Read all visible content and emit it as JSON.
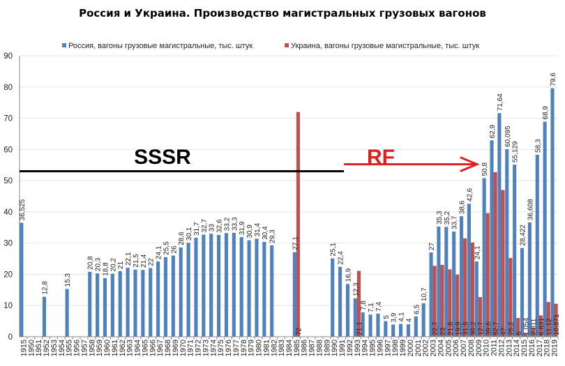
{
  "chart_data": {
    "type": "bar",
    "title": "Россия и Украина. Производство магистральных грузовых вагонов",
    "xlabel": "",
    "ylabel": "",
    "ylim": [
      0,
      90
    ],
    "yticks": [
      0,
      10,
      20,
      30,
      40,
      50,
      60,
      70,
      80,
      90
    ],
    "grid": true,
    "legend_position": "top",
    "categories": [
      "1915",
      "1950",
      "1951",
      "1952",
      "1953",
      "1954",
      "1955",
      "1956",
      "1957",
      "1958",
      "1959",
      "1960",
      "1961",
      "1962",
      "1963",
      "1964",
      "1965",
      "1966",
      "1967",
      "1968",
      "1969",
      "1970",
      "1971",
      "1972",
      "1973",
      "1974",
      "1975",
      "1976",
      "1977",
      "1978",
      "1979",
      "1980",
      "1981",
      "1982",
      "1983",
      "1984",
      "1985",
      "1986",
      "1987",
      "1988",
      "1989",
      "1990",
      "1991",
      "1992",
      "1993",
      "1994",
      "1995",
      "1996",
      "1997",
      "1998",
      "1999",
      "2000",
      "2001",
      "2002",
      "2003",
      "2004",
      "2005",
      "2006",
      "2007",
      "2008",
      "2009",
      "2010",
      "2011",
      "2012",
      "2013",
      "2014",
      "2015",
      "2016",
      "2017",
      "2018",
      "2019"
    ],
    "series": [
      {
        "name": "Россия, вагоны грузовые магистральные, тыс. штук",
        "color": "#4F81BD",
        "values": [
          36.525,
          null,
          null,
          12.8,
          null,
          null,
          15.3,
          null,
          null,
          20.8,
          20.3,
          18.8,
          20.2,
          21,
          22.1,
          21.5,
          21.4,
          22,
          24.1,
          25.5,
          26,
          28.6,
          30.1,
          31.7,
          32.7,
          33,
          32.6,
          33.2,
          33.3,
          31.9,
          30.9,
          31.4,
          30.4,
          29.3,
          null,
          null,
          27.1,
          null,
          null,
          null,
          null,
          25.1,
          22.4,
          16.9,
          12.3,
          7.8,
          7.1,
          7.4,
          5,
          3.9,
          4.1,
          4,
          6.5,
          10.7,
          27,
          35.3,
          35.2,
          33.7,
          38.6,
          42.6,
          24.1,
          50.8,
          62.9,
          71.64,
          60.095,
          55.129,
          28.422,
          36.608,
          58.3,
          68.9,
          79.6
        ]
      },
      {
        "name": "Украина, вагоны грузовые магистральные, тыс. штук",
        "color": "#C0504D",
        "values": [
          null,
          null,
          null,
          null,
          null,
          null,
          null,
          null,
          null,
          null,
          null,
          null,
          null,
          null,
          null,
          null,
          null,
          null,
          null,
          null,
          null,
          null,
          null,
          null,
          null,
          null,
          null,
          null,
          null,
          null,
          null,
          null,
          null,
          null,
          null,
          null,
          72,
          null,
          null,
          null,
          null,
          null,
          null,
          null,
          21.1,
          null,
          null,
          null,
          null,
          null,
          null,
          null,
          null,
          null,
          22.7,
          23,
          21.6,
          19.9,
          31.5,
          30.2,
          12.7,
          39.6,
          52.7,
          47,
          25.2,
          6,
          1.054,
          2.811,
          6.831,
          11.12,
          10.571
        ]
      }
    ],
    "annotations": {
      "left_label": "SSSR",
      "right_label": "RF",
      "divider_value": 53,
      "divider_end_category": "1991",
      "arrow_end_category": "2009"
    }
  }
}
